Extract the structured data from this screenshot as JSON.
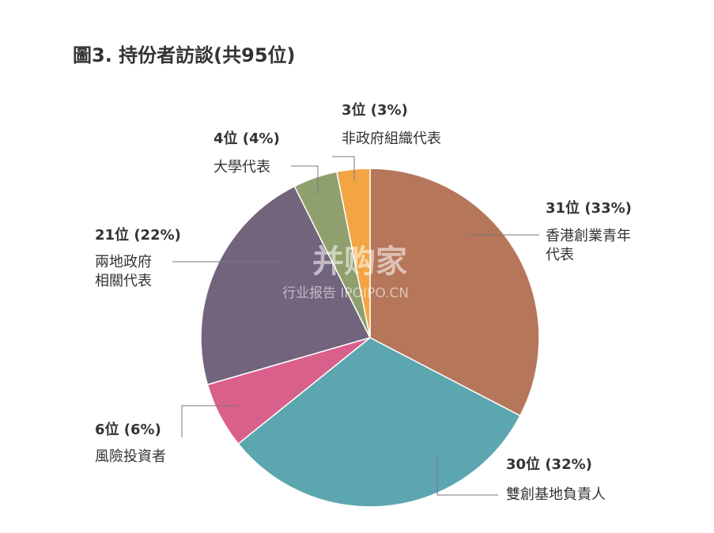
{
  "chart_data": {
    "type": "pie",
    "title": "圖3. 持份者訪談(共95位)",
    "categories": [
      "香港創業青年代表",
      "雙創基地負責人",
      "風險投資者",
      "兩地政府相關代表",
      "大學代表",
      "非政府組織代表"
    ],
    "values": [
      31,
      30,
      6,
      21,
      4,
      3
    ],
    "value_labels": [
      "31位 (33%)",
      "30位 (32%)",
      "6位 (6%)",
      "21位 (22%)",
      "4位 (4%)",
      "3位 (3%)"
    ],
    "colors": [
      "#b5765a",
      "#5ca6b0",
      "#d9608a",
      "#72647d",
      "#8f9f6e",
      "#f3a544"
    ]
  },
  "watermark": {
    "brand": "并购家",
    "sub": "行业报告 IPOIPO.CN"
  }
}
